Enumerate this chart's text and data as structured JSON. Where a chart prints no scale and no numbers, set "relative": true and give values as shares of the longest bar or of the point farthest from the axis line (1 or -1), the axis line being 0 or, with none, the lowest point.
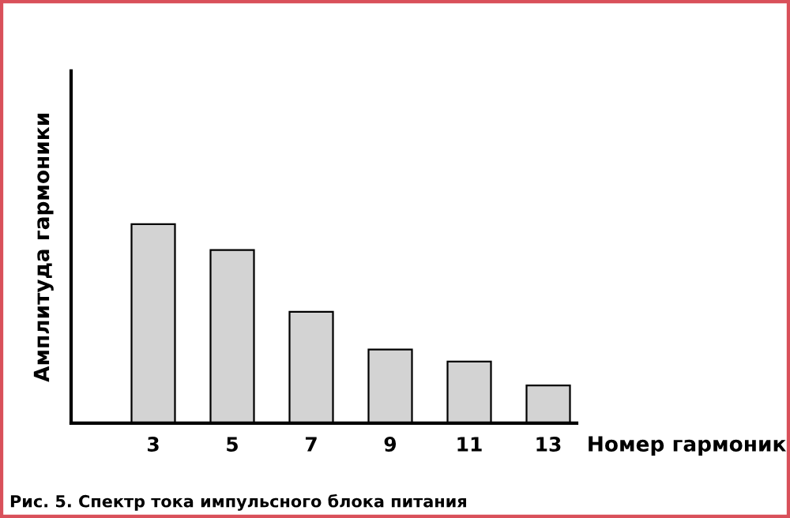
{
  "chart_data": {
    "type": "bar",
    "relative": true,
    "xlabel": "Номер гармоник",
    "ylabel": "Амплитуда гармоники",
    "categories": [
      "3",
      "5",
      "7",
      "9",
      "11",
      "13"
    ],
    "values": [
      1,
      0.87,
      0.56,
      0.37,
      0.31,
      0.19
    ],
    "color": "#d3d3d3",
    "annotations": [
      "Рис. 5. Спектр тока импульсного блока питания"
    ],
    "grid": false,
    "legend": false
  }
}
